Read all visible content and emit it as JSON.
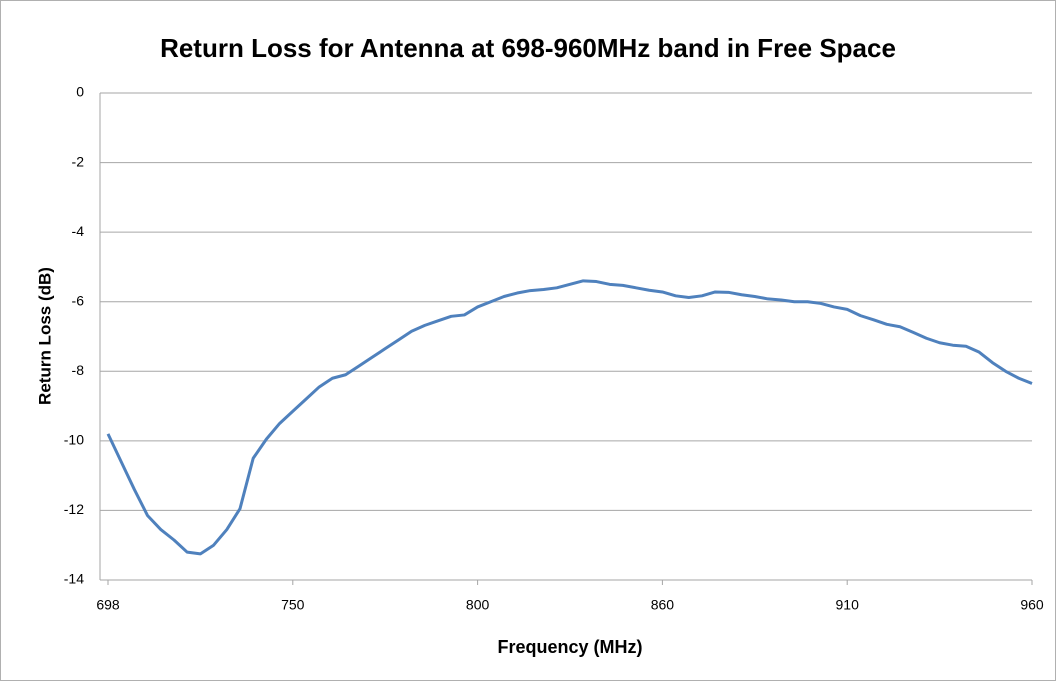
{
  "chart_data": {
    "type": "line",
    "title": "Return Loss for Antenna at 698-960MHz band in Free Space",
    "x_label": "Frequency  (MHz)",
    "y_label": "Return Loss (dB)",
    "categories": [
      "698",
      null,
      null,
      null,
      null,
      null,
      null,
      null,
      null,
      null,
      null,
      null,
      null,
      null,
      "750",
      null,
      null,
      null,
      null,
      null,
      null,
      null,
      null,
      null,
      null,
      null,
      null,
      null,
      "800",
      null,
      null,
      null,
      null,
      null,
      null,
      null,
      null,
      null,
      null,
      null,
      null,
      null,
      "860",
      null,
      null,
      null,
      null,
      null,
      null,
      null,
      null,
      null,
      null,
      null,
      null,
      null,
      "910",
      null,
      null,
      null,
      null,
      null,
      null,
      null,
      null,
      null,
      null,
      null,
      null,
      null,
      "960"
    ],
    "values": [
      -9.8,
      -10.6,
      -11.4,
      -12.15,
      -12.55,
      -12.85,
      -13.2,
      -13.25,
      -13.0,
      -12.55,
      -11.95,
      -10.5,
      -9.95,
      -9.5,
      -9.15,
      -8.8,
      -8.45,
      -8.2,
      -8.1,
      -7.85,
      -7.6,
      -7.35,
      -7.1,
      -6.85,
      -6.68,
      -6.55,
      -6.42,
      -6.38,
      -6.15,
      -6.0,
      -5.85,
      -5.75,
      -5.68,
      -5.65,
      -5.6,
      -5.5,
      -5.4,
      -5.42,
      -5.5,
      -5.53,
      -5.6,
      -5.67,
      -5.72,
      -5.83,
      -5.88,
      -5.83,
      -5.72,
      -5.73,
      -5.8,
      -5.85,
      -5.92,
      -5.95,
      -6.0,
      -6.0,
      -6.05,
      -6.15,
      -6.22,
      -6.4,
      -6.52,
      -6.65,
      -6.72,
      -6.88,
      -7.05,
      -7.18,
      -7.25,
      -7.28,
      -7.45,
      -7.75,
      -8.0,
      -8.2,
      -8.35
    ],
    "color": "#4f81bd",
    "ylim": [
      -14,
      0
    ],
    "yticks": [
      0,
      -2,
      -4,
      -6,
      -8,
      -10,
      -12,
      -14
    ],
    "grid": true
  }
}
